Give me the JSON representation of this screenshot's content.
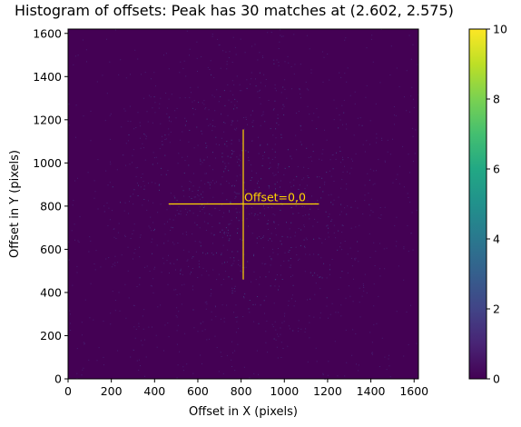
{
  "chart_data": {
    "type": "heatmap",
    "title": "Histogram of offsets: Peak has 30 matches at (2.602, 2.575)",
    "xlabel": "Offset in X (pixels)",
    "ylabel": "Offset in Y (pixels)",
    "xlim": [
      0,
      1620
    ],
    "ylim": [
      0,
      1620
    ],
    "xticks": [
      0,
      200,
      400,
      600,
      800,
      1000,
      1200,
      1400,
      1600
    ],
    "yticks": [
      0,
      200,
      400,
      600,
      800,
      1000,
      1200,
      1400,
      1600
    ],
    "colormap": "viridis",
    "colorbar": {
      "range": [
        0,
        10
      ],
      "ticks": [
        0,
        2,
        4,
        6,
        8,
        10
      ]
    },
    "background_color": "#440154",
    "marker": {
      "label": "Offset=0,0",
      "color": "#ffd700",
      "center": [
        810,
        810
      ],
      "h_line_x": [
        465,
        1160
      ],
      "v_line_y": [
        460,
        1155
      ]
    },
    "grid": false
  }
}
